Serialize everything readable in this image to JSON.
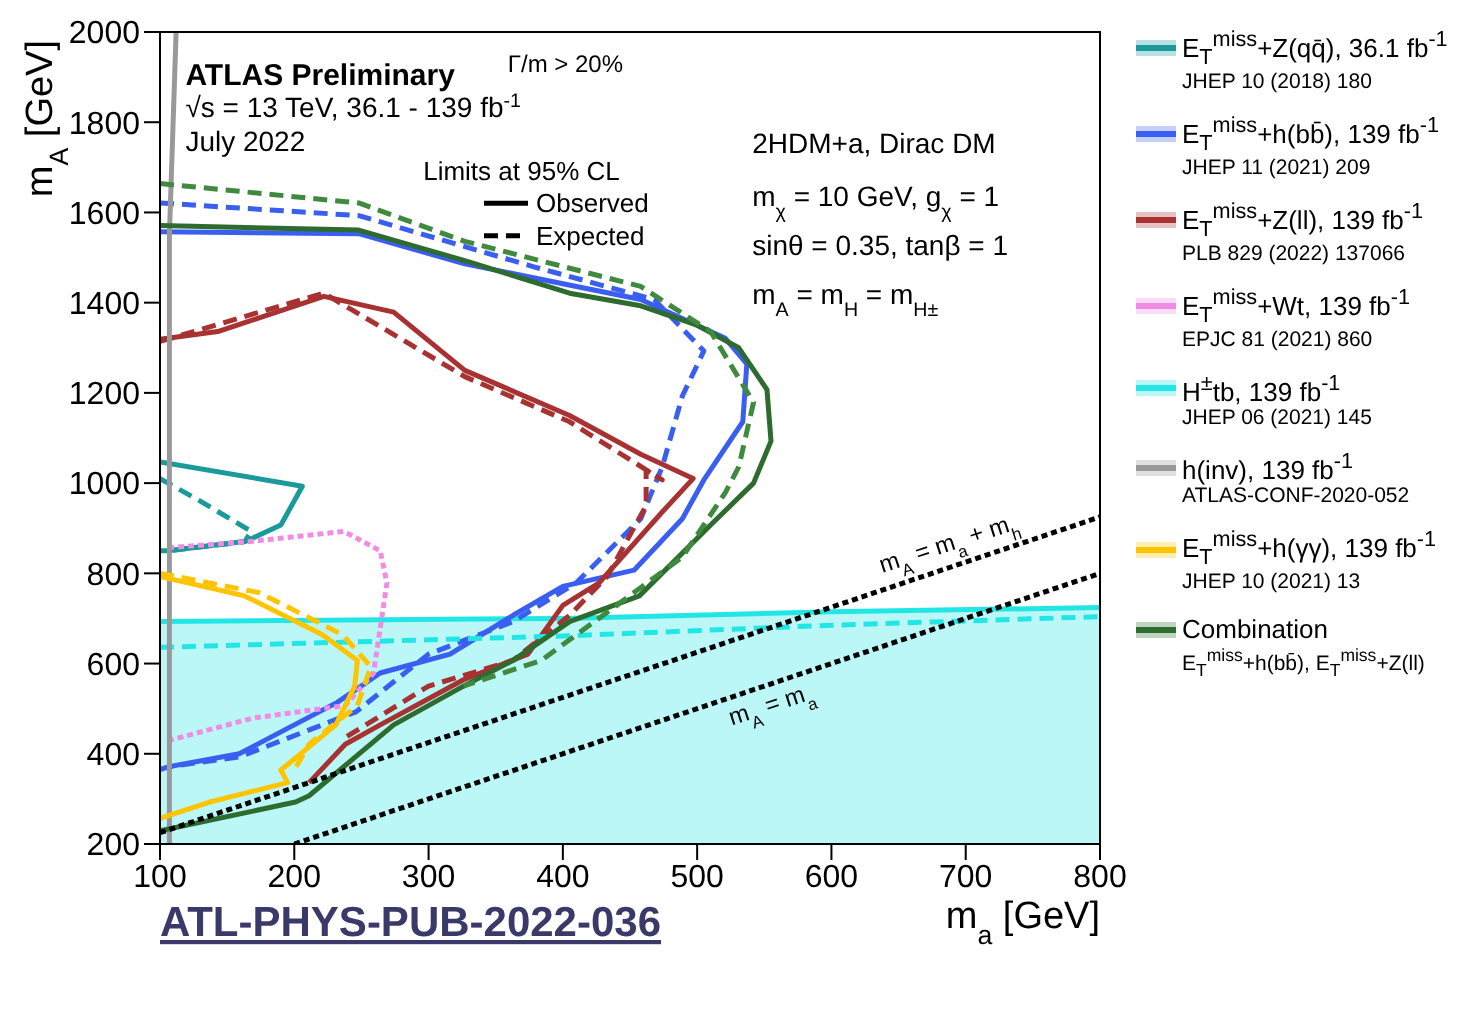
{
  "chart_data": {
    "type": "line",
    "xlabel": "m$_{a}$ [GeV]",
    "ylabel": "m$_{A}$ [GeV]",
    "xlim": [
      100,
      800
    ],
    "xticks": [
      100,
      200,
      300,
      400,
      500,
      600,
      700,
      800
    ],
    "ylim": [
      200,
      2000
    ],
    "yticks": [
      200,
      400,
      600,
      800,
      1000,
      1200,
      1400,
      1600,
      1800,
      2000
    ],
    "legend": "right",
    "annotations": [
      "ATLAS Preliminary",
      "√s = 13 TeV, 36.1 - 139 fb$^{-1}$",
      "July 2022",
      "Γ/m > 20%",
      "Limits at 95% CL",
      "Observed",
      "Expected",
      "2HDM+a, Dirac DM",
      "m$_{χ}$ = 10 GeV, g$_{χ}$ = 1",
      "sinθ = 0.35, tanβ = 1",
      "m$_{A}$ = m$_{H}$ = m$_{H±}$",
      "m$_{A}$ = m$_{a}$ + m$_{h}$",
      "m$_{A}$ = m$_{a}$",
      "ATL-PHYS-PUB-2022-036",
      "JHEP 10 (2018) 180",
      "JHEP 11 (2021) 209",
      "PLB 829 (2022) 137066",
      "EPJC 81 (2021) 860",
      "JHEP 06 (2021) 145",
      "ATLAS-CONF-2020-052",
      "JHEP 10 (2021) 13",
      "E$_{T}$$^{miss}$+h(bb̄), E$_{T}$$^{miss}$+Z(ll)"
    ],
    "series": [
      {
        "name": "E$_{T}$$^{miss}$+Z(qq̄), 36.1 fb$^{-1}$",
        "color": "#1a9a9a",
        "line_style": "solid",
        "x": [
          100,
          206,
          190,
          164,
          106,
          100
        ],
        "values": [
          1047,
          993,
          907,
          871,
          850,
          850
        ]
      },
      {
        "color": "#1a9a9a",
        "line_style": "dashed",
        "x": [
          100,
          130,
          168,
          163,
          106
        ],
        "values": [
          1010,
          960,
          893,
          870,
          850
        ]
      },
      {
        "name": "E$_{T}$$^{miss}$+h(bb̄), 139 fb$^{-1}$",
        "color": "#3a5ff0",
        "line_style": "solid",
        "x": [
          100,
          248,
          327,
          458,
          521,
          537,
          534,
          505,
          489,
          453,
          400,
          363,
          316,
          264,
          232,
          159,
          106,
          100
        ],
        "values": [
          1557,
          1553,
          1486,
          1407,
          1321,
          1264,
          1136,
          1007,
          921,
          807,
          771,
          707,
          621,
          579,
          514,
          400,
          371,
          365
        ]
      },
      {
        "color": "#3a5ff0",
        "line_style": "dashed",
        "x": [
          100,
          248,
          379,
          468,
          505,
          489,
          474,
          458,
          410,
          363,
          300,
          246,
          159,
          106
        ],
        "values": [
          1621,
          1593,
          1479,
          1407,
          1293,
          1193,
          1036,
          921,
          779,
          693,
          621,
          493,
          393,
          371
        ]
      },
      {
        "name": "E$_{T}$$^{miss}$+Z(ll), 139 fb$^{-1}$",
        "color": "#a83232",
        "line_style": "solid",
        "x": [
          100,
          143,
          222,
          274,
          327,
          405,
          458,
          497,
          474,
          427,
          400,
          374,
          326,
          264,
          238,
          211
        ],
        "values": [
          1319,
          1336,
          1414,
          1379,
          1250,
          1150,
          1064,
          1010,
          936,
          779,
          729,
          621,
          564,
          464,
          421,
          336
        ]
      },
      {
        "color": "#a83232",
        "line_style": "dashed",
        "x": [
          100,
          222,
          327,
          405,
          474,
          462,
          462,
          433,
          405,
          363,
          300,
          238
        ],
        "values": [
          1314,
          1421,
          1236,
          1136,
          1007,
          1029,
          950,
          793,
          707,
          607,
          550,
          436
        ]
      },
      {
        "name": "E$_{T}$$^{miss}$+Wt, 139 fb$^{-1}$",
        "color": "#f08ce6",
        "line_style": "dotted",
        "x": [
          106,
          169,
          237,
          264,
          269,
          259,
          238,
          169,
          106
        ],
        "values": [
          857,
          871,
          893,
          850,
          779,
          579,
          507,
          479,
          429
        ]
      },
      {
        "type": "area",
        "name": "H$^{±}$tb, 139 fb$^{-1}$",
        "color": "#22e6e6",
        "line_style": "solid",
        "x": [
          100,
          400,
          600,
          800
        ],
        "values": [
          693,
          700,
          715,
          724
        ]
      },
      {
        "color": "#22e6e6",
        "line_style": "dashed",
        "x": [
          100,
          400,
          600,
          800
        ],
        "values": [
          636,
          661,
          685,
          704
        ]
      },
      {
        "name": "h(inv), 139 fb$^{-1}$",
        "color": "#999999",
        "line_style": "solid",
        "x": [
          107,
          107,
          112
        ],
        "values": [
          200,
          1550,
          2000
        ]
      },
      {
        "name": "E$_{T}$$^{miss}$+h(γγ), 139 fb$^{-1}$",
        "color": "#ffc400",
        "line_style": "solid",
        "x": [
          100,
          163,
          221,
          247,
          245,
          231,
          190,
          195,
          137,
          100
        ],
        "values": [
          793,
          750,
          664,
          607,
          550,
          464,
          364,
          336,
          293,
          257
        ]
      },
      {
        "color": "#ffc400",
        "line_style": "dashed",
        "x": [
          100,
          174,
          236,
          257,
          247,
          211,
          200
        ],
        "values": [
          800,
          757,
          664,
          593,
          507,
          421,
          364
        ]
      },
      {
        "name": "Combination",
        "color": "#2e6b2e",
        "line_style": "solid",
        "x": [
          100,
          248,
          327,
          405,
          458,
          500,
          531,
          552,
          555,
          542,
          510,
          457,
          405,
          363,
          326,
          274,
          211,
          201,
          100
        ],
        "values": [
          1571,
          1561,
          1493,
          1421,
          1393,
          1350,
          1300,
          1207,
          1093,
          1000,
          907,
          750,
          693,
          607,
          550,
          464,
          307,
          293,
          229
        ]
      },
      {
        "color": "#3f8a3f",
        "line_style": "dashed",
        "x": [
          100,
          248,
          327,
          458,
          510,
          542,
          531,
          521,
          489,
          430,
          384,
          326
        ],
        "values": [
          1664,
          1621,
          1536,
          1436,
          1336,
          1179,
          1036,
          979,
          836,
          707,
          607,
          550
        ]
      },
      {
        "color": "#000000",
        "line_style": "dotted",
        "x": [
          200,
          800
        ],
        "values": [
          200,
          800
        ]
      },
      {
        "color": "#000000",
        "line_style": "dotted",
        "x": [
          100,
          800
        ],
        "values": [
          225,
          925
        ]
      }
    ]
  }
}
